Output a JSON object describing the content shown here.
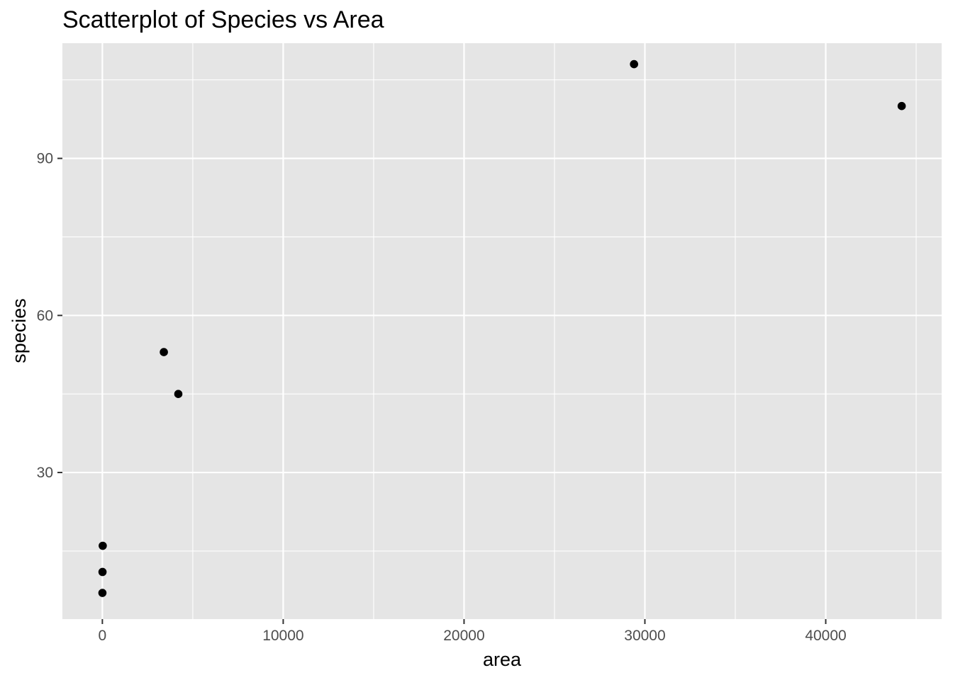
{
  "chart_data": {
    "type": "scatter",
    "title": "Scatterplot of Species vs Area",
    "xlabel": "area",
    "ylabel": "species",
    "xlim": [
      -2210,
      46410
    ],
    "ylim": [
      2.0,
      112.0
    ],
    "x_ticks": [
      0,
      10000,
      20000,
      30000,
      40000
    ],
    "x_tick_labels": [
      "0",
      "10000",
      "20000",
      "30000",
      "40000"
    ],
    "x_minor_ticks": [
      5000,
      15000,
      25000,
      35000,
      45000
    ],
    "y_ticks": [
      30,
      60,
      90
    ],
    "y_tick_labels": [
      "30",
      "60",
      "90"
    ],
    "y_minor_ticks": [
      15,
      45,
      75,
      105
    ],
    "grid": true,
    "legend": "none",
    "colors": {
      "panel_background": "#e5e5e5",
      "grid": "#ffffff",
      "point": "#000000",
      "tick": "#333333"
    },
    "series": [
      {
        "points": [
          {
            "x": 3,
            "y": 7
          },
          {
            "x": 8,
            "y": 11
          },
          {
            "x": 20,
            "y": 16
          },
          {
            "x": 3400,
            "y": 53
          },
          {
            "x": 4200,
            "y": 45
          },
          {
            "x": 29400,
            "y": 108
          },
          {
            "x": 44200,
            "y": 100
          }
        ]
      }
    ]
  }
}
